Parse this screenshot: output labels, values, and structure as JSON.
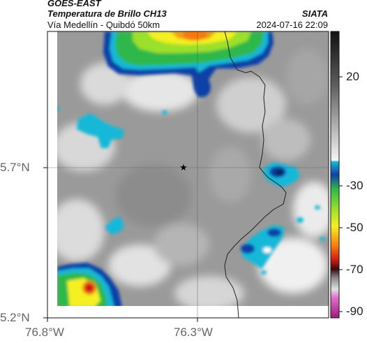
{
  "header": {
    "satellite": "GOES-EAST",
    "product": "Temperatura de Brillo CH13",
    "region": "Vía Medellín - Quibdó 50km",
    "source": "SIATA",
    "timestamp": "2024-07-16 22:09"
  },
  "map": {
    "lat_labels": [
      "5.7°N",
      "5.2°N"
    ],
    "lon_labels": [
      "76.8°W",
      "76.3°W"
    ],
    "grid": true,
    "marker_symbol": "star",
    "marker_icon": "star-icon"
  },
  "colorbar": {
    "tick_labels": [
      "20",
      "-30",
      "-50",
      "-70",
      "-90"
    ],
    "colors": {
      "warm_top": "#111111",
      "gray_mid": "#8a8a8a",
      "white": "#f4f4f4",
      "cyan": "#19b8d8",
      "blue": "#1140a8",
      "green": "#2db84a",
      "yellow": "#f4f020",
      "orange": "#f47a10",
      "red": "#c81818",
      "dark": "#3a0a0a",
      "magenta": "#c02aa0"
    }
  }
}
